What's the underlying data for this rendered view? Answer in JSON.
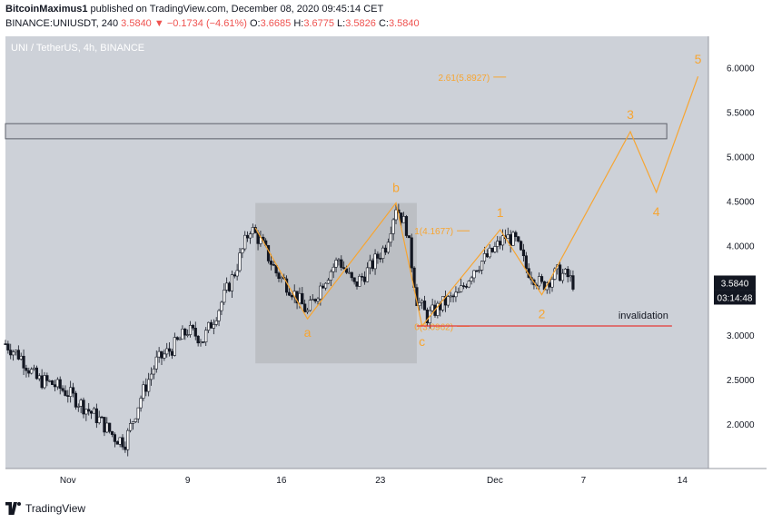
{
  "header": {
    "author": "BitcoinMaximus1",
    "published": "published on TradingView.com, December 08, 2020 09:45:14 CET",
    "symbol_line": "BINANCE:UNIUSDT, 240",
    "last": "3.5840",
    "change": "−0.1734 (−4.61%)",
    "o_label": "O:",
    "o_value": "3.6685",
    "h_label": "H:",
    "h_value": "3.6775",
    "l_label": "L:",
    "l_value": "3.5826",
    "c_label": "C:",
    "c_value": "3.5840"
  },
  "footer": {
    "brand": "TradingView"
  },
  "chart_data": {
    "type": "candlestick",
    "title": "UNI / TetherUS, 4h, BINANCE",
    "currency": "USDT",
    "y_ticks": [
      "6.0000",
      "5.5000",
      "5.0000",
      "4.5000",
      "4.0000",
      "3.5000",
      "3.0000",
      "2.5000",
      "2.0000"
    ],
    "x_ticks": [
      "Nov",
      "9",
      "16",
      "23",
      "Dec",
      "7",
      "14"
    ],
    "last_price_label": "3.5840",
    "countdown_label": "03:14:48",
    "ylim": [
      1.5,
      6.35
    ],
    "colors": {
      "background": "#cdd1d8",
      "accent": "#f7a531",
      "invalidation": "#e53935",
      "box": "#b5b8be",
      "candle": "#131722"
    },
    "price_path": [
      [
        0,
        2.9
      ],
      [
        3,
        2.75
      ],
      [
        6,
        2.5
      ],
      [
        9,
        2.45
      ],
      [
        12,
        2.35
      ],
      [
        15,
        2.2
      ],
      [
        18,
        2.05
      ],
      [
        21,
        1.85
      ],
      [
        23,
        1.8
      ],
      [
        26,
        2.3
      ],
      [
        29,
        2.7
      ],
      [
        32,
        2.85
      ],
      [
        35,
        3.05
      ],
      [
        38,
        2.95
      ],
      [
        41,
        3.3
      ],
      [
        44,
        3.7
      ],
      [
        47,
        4.2
      ],
      [
        49,
        4.05
      ],
      [
        52,
        3.7
      ],
      [
        55,
        3.5
      ],
      [
        58,
        3.25
      ],
      [
        61,
        3.6
      ],
      [
        64,
        3.85
      ],
      [
        67,
        3.55
      ],
      [
        70,
        3.75
      ],
      [
        73,
        4.0
      ],
      [
        75,
        4.45
      ],
      [
        77,
        4.2
      ],
      [
        79,
        3.4
      ],
      [
        81,
        3.2
      ],
      [
        84,
        3.35
      ],
      [
        87,
        3.45
      ],
      [
        90,
        3.75
      ],
      [
        93,
        3.9
      ],
      [
        96,
        4.1
      ],
      [
        98,
        4.05
      ],
      [
        100,
        3.75
      ],
      [
        103,
        3.55
      ],
      [
        106,
        3.7
      ],
      [
        108,
        3.65
      ],
      [
        109,
        3.584
      ]
    ],
    "wave_points": [
      {
        "label": "",
        "x": 48,
        "y": 4.2
      },
      {
        "label": "a",
        "x": 58,
        "y": 3.18
      },
      {
        "label": "b",
        "x": 75,
        "y": 4.48
      },
      {
        "label": "c",
        "x": 80,
        "y": 3.1
      },
      {
        "label": "1",
        "x": 95,
        "y": 4.18
      },
      {
        "label": "2",
        "x": 103,
        "y": 3.45
      },
      {
        "label": "3",
        "x": 120,
        "y": 5.28
      },
      {
        "label": "4",
        "x": 125,
        "y": 4.6
      },
      {
        "label": "5",
        "x": 133,
        "y": 5.9
      }
    ],
    "fib_levels": [
      {
        "label": "2.61(5.8927)",
        "value": 5.8927
      },
      {
        "label": "1(4.1677)",
        "value": 4.1677
      },
      {
        "label": "0(3.0962)",
        "value": 3.0962
      }
    ],
    "invalidation": {
      "label": "invalidation",
      "value": 3.1
    },
    "resistance_zone": [
      5.2,
      5.37
    ],
    "consolidation_box": {
      "x_range": [
        48,
        79
      ],
      "price_range": [
        2.68,
        4.48
      ]
    }
  }
}
